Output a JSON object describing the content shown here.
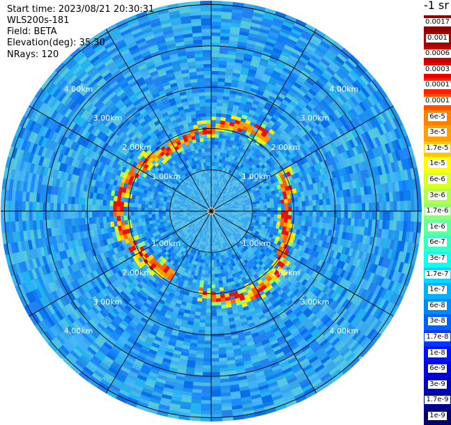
{
  "info": {
    "start_time": "Start time: 2023/08/21 20:30:31",
    "instrument": "WLS200s-181",
    "field": "Field: BETA",
    "elevation": "Elevation(deg): 35.30",
    "nrays": "NRays: 120"
  },
  "colorbar": {
    "title": "-1 sr",
    "labels": [
      "0.0017",
      "0.001",
      "0.0006",
      "0.0003",
      "0.00017",
      "0.0001",
      "6e-5",
      "3e-5",
      "1.7e-5",
      "1e-5",
      "6e-6",
      "3e-6",
      "1.7e-6",
      "1e-6",
      "6e-7",
      "3e-7",
      "1.7e-7",
      "1e-7",
      "6e-8",
      "3e-8",
      "1.7e-8",
      "1e-8",
      "6e-9",
      "3e-9",
      "1.7e-9",
      "1e-9"
    ],
    "colors": [
      "#8b0000",
      "#a80000",
      "#c80000",
      "#e80000",
      "#ff2000",
      "#ff5000",
      "#ff8000",
      "#ffa000",
      "#ffc800",
      "#ffff00",
      "#d8ff28",
      "#b0ff50",
      "#88ff78",
      "#60ffa0",
      "#38ffc8",
      "#10ffef",
      "#00d8ff",
      "#00b0ff",
      "#0088ff",
      "#0060ff",
      "#0038ff",
      "#0010ff",
      "#0000e0",
      "#0000b8",
      "#000090",
      "#000068"
    ]
  },
  "range_rings": {
    "labels": [
      "1.00km",
      "2.00km",
      "3.00km",
      "4.00km",
      "5.00km"
    ]
  }
}
